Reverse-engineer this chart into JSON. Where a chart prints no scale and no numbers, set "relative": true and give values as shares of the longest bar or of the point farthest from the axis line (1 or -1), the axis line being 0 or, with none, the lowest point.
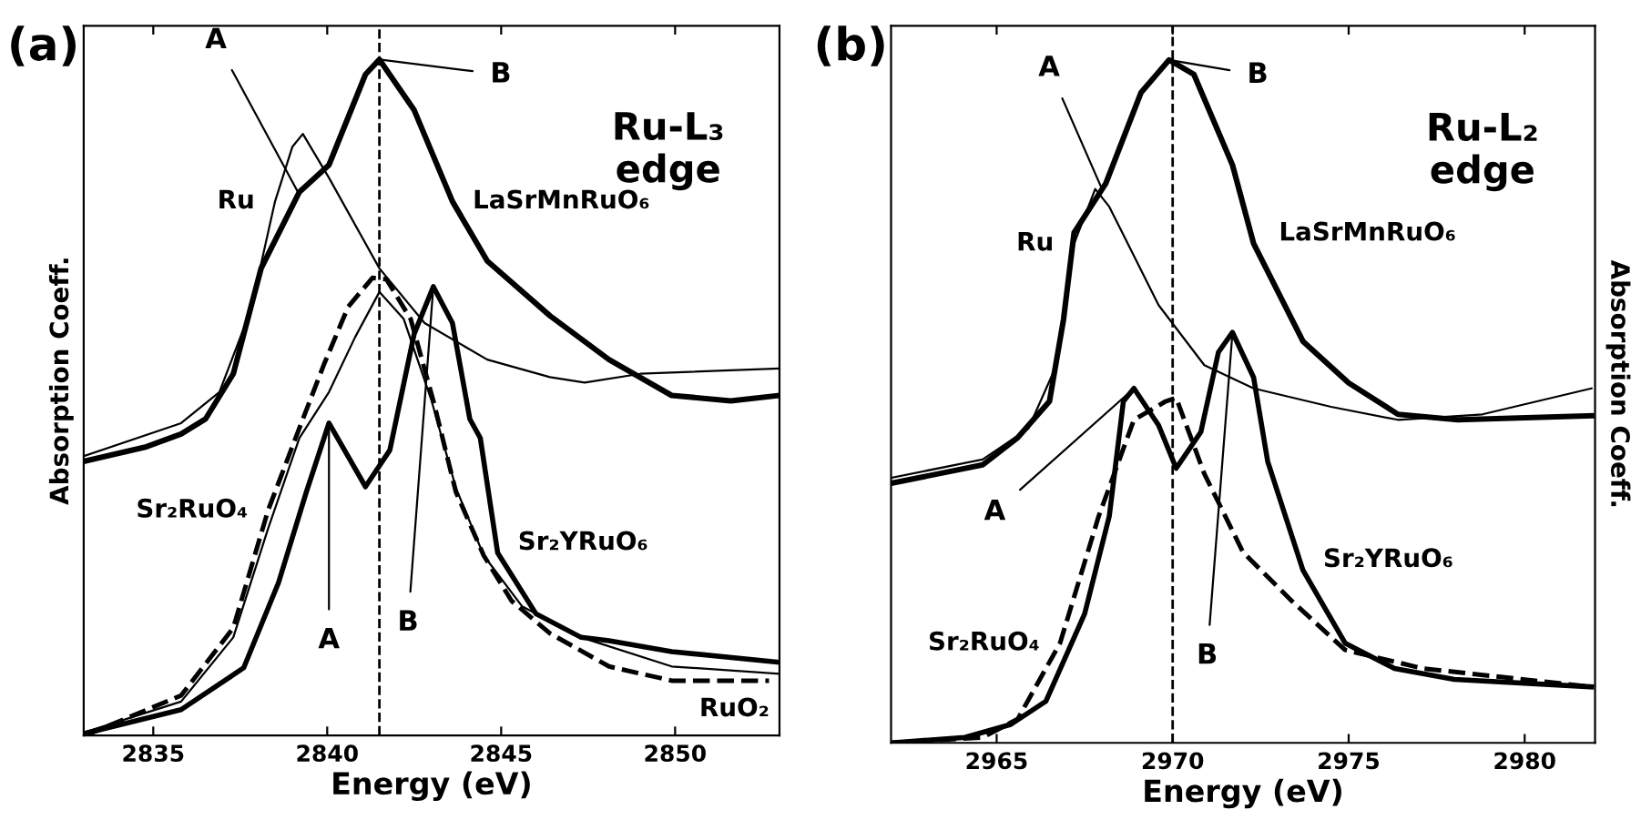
{
  "chart_data": [
    {
      "type": "line",
      "relative": true,
      "xlabel": "Energy (eV)",
      "ylabel": "Absorption Coeff.",
      "xlim": [
        2833,
        2853
      ],
      "xticks": [
        2835,
        2840,
        2845,
        2850
      ],
      "tick_labels": "x",
      "grid": false,
      "legend": false,
      "marker": "none",
      "annotations": [
        "(a)",
        "Ru-L₃\nedge",
        {
          "text": "A",
          "x": 2839.2,
          "y": 0.8
        },
        {
          "text": "B",
          "x": 2841.5,
          "y": 1.0
        },
        {
          "text": "A",
          "x": 2840.05,
          "y": 0.462
        },
        {
          "text": "B",
          "x": 2843.05,
          "y": 0.664
        }
      ],
      "ref_lines": [
        {
          "axis": "x",
          "value": 2841.5,
          "line_style": "dashed",
          "color": "#000000"
        }
      ],
      "series": [
        {
          "name": "Ru",
          "color": "#000000",
          "line_style": "solid",
          "x": [
            2833.05,
            2835.8,
            2836.9,
            2837.8,
            2838.5,
            2839.0,
            2839.3,
            2840.05,
            2841.5,
            2842.8,
            2844.6,
            2846.4,
            2847.4,
            2849,
            2853
          ],
          "values": [
            0.414,
            0.462,
            0.508,
            0.629,
            0.79,
            0.871,
            0.89,
            0.825,
            0.691,
            0.61,
            0.556,
            0.53,
            0.522,
            0.535,
            0.543
          ]
        },
        {
          "name": "LaSrMnRuO₆",
          "color": "#000000",
          "line_style": "solid",
          "x": [
            2833.05,
            2834.8,
            2835.8,
            2836.5,
            2837.3,
            2838.1,
            2839.2,
            2840.05,
            2841.1,
            2841.5,
            2842.5,
            2843.6,
            2844.6,
            2846.4,
            2848.1,
            2849.9,
            2851.6,
            2853
          ],
          "values": [
            0.406,
            0.427,
            0.446,
            0.468,
            0.535,
            0.691,
            0.804,
            0.844,
            0.978,
            1.0,
            0.925,
            0.79,
            0.702,
            0.621,
            0.556,
            0.503,
            0.495,
            0.503
          ]
        },
        {
          "name": "Sr₂YRuO₆",
          "color": "#000000",
          "line_style": "solid",
          "x": [
            2833.05,
            2835.8,
            2837.6,
            2838.6,
            2839.4,
            2840.05,
            2841.1,
            2841.8,
            2842.5,
            2843.05,
            2843.6,
            2844.1,
            2844.4,
            2844.9,
            2846.0,
            2847.3,
            2848.1,
            2849.9,
            2853
          ],
          "values": [
            0.003,
            0.038,
            0.1,
            0.226,
            0.36,
            0.462,
            0.368,
            0.422,
            0.594,
            0.664,
            0.61,
            0.468,
            0.44,
            0.27,
            0.18,
            0.145,
            0.14,
            0.124,
            0.108
          ]
        },
        {
          "name": "RuO₂",
          "color": "#000000",
          "line_style": "solid",
          "x": [
            2833.05,
            2835.8,
            2837.3,
            2838.3,
            2839.2,
            2840.05,
            2840.8,
            2841.5,
            2842.2,
            2843.0,
            2843.7,
            2844.5,
            2845.6,
            2847.3,
            2849.9,
            2853
          ],
          "values": [
            0.005,
            0.05,
            0.145,
            0.306,
            0.44,
            0.508,
            0.589,
            0.656,
            0.616,
            0.495,
            0.366,
            0.266,
            0.191,
            0.145,
            0.102,
            0.091
          ]
        },
        {
          "name": "Sr₂RuO₄",
          "color": "#000000",
          "line_style": "dashed",
          "x": [
            2833.05,
            2835.8,
            2837.3,
            2838.3,
            2839.3,
            2839.9,
            2840.6,
            2841.3,
            2841.7,
            2842.4,
            2843.05,
            2843.7,
            2844.5,
            2845.3,
            2846.4,
            2848.1,
            2849.9,
            2852.7
          ],
          "values": [
            0,
            0.059,
            0.159,
            0.333,
            0.468,
            0.548,
            0.634,
            0.677,
            0.675,
            0.616,
            0.495,
            0.36,
            0.266,
            0.199,
            0.151,
            0.102,
            0.081,
            0.081
          ]
        }
      ]
    },
    {
      "type": "line",
      "relative": true,
      "xlabel": "Energy (eV)",
      "ylabel": "Absorption Coeff.",
      "xlim": [
        2962,
        2982
      ],
      "xticks": [
        2965,
        2970,
        2975,
        2980
      ],
      "tick_labels": "x",
      "grid": false,
      "legend": false,
      "marker": "none",
      "annotations": [
        "(b)",
        "Ru-L₂\nedge",
        {
          "text": "A",
          "x": 2968.0,
          "y": 0.81
        },
        {
          "text": "B",
          "x": 2969.9,
          "y": 1.0
        },
        {
          "text": "A",
          "x": 2968.9,
          "y": 0.519
        },
        {
          "text": "B",
          "x": 2971.7,
          "y": 0.601
        }
      ],
      "ref_lines": [
        {
          "axis": "x",
          "value": 2970,
          "line_style": "dashed",
          "color": "#000000"
        }
      ],
      "series": [
        {
          "name": "Ru",
          "color": "#000000",
          "line_style": "solid",
          "x": [
            2962,
            2964.6,
            2965.9,
            2966.7,
            2967.2,
            2967.8,
            2968.2,
            2969.6,
            2970.9,
            2972.3,
            2974.5,
            2976.4,
            2978.8,
            2981.9
          ],
          "values": [
            0.388,
            0.415,
            0.46,
            0.553,
            0.731,
            0.811,
            0.785,
            0.641,
            0.553,
            0.519,
            0.492,
            0.473,
            0.481,
            0.519
          ]
        },
        {
          "name": "LaSrMnRuO₆",
          "color": "#000000",
          "line_style": "solid",
          "x": [
            2962,
            2964.6,
            2965.6,
            2966.5,
            2966.9,
            2967.2,
            2968.1,
            2969.1,
            2969.9,
            2970.6,
            2971.7,
            2972.3,
            2973.7,
            2975.0,
            2976.4,
            2978.1,
            2981.9
          ],
          "values": [
            0.38,
            0.407,
            0.447,
            0.5,
            0.62,
            0.747,
            0.819,
            0.952,
            1.0,
            0.979,
            0.846,
            0.731,
            0.588,
            0.527,
            0.481,
            0.473,
            0.479
          ]
        },
        {
          "name": "Sr₂YRuO₆",
          "color": "#000000",
          "line_style": "solid",
          "x": [
            2962,
            2964.1,
            2965.4,
            2966.4,
            2967.5,
            2968.2,
            2968.6,
            2968.9,
            2969.6,
            2970.1,
            2970.8,
            2971.3,
            2971.7,
            2972.3,
            2972.7,
            2973.7,
            2974.9,
            2976.3,
            2978.0,
            2981.9
          ],
          "values": [
            0,
            0.008,
            0.027,
            0.061,
            0.189,
            0.332,
            0.5,
            0.519,
            0.465,
            0.402,
            0.455,
            0.572,
            0.601,
            0.535,
            0.412,
            0.253,
            0.146,
            0.109,
            0.093,
            0.082
          ]
        },
        {
          "name": "Sr₂RuO₄",
          "color": "#000000",
          "line_style": "dashed",
          "x": [
            2962,
            2964.6,
            2965.6,
            2966.8,
            2967.9,
            2968.9,
            2969.8,
            2970.1,
            2970.9,
            2972.0,
            2973.4,
            2974.9,
            2977.1,
            2981.9
          ],
          "values": [
            0,
            0.008,
            0.035,
            0.146,
            0.332,
            0.473,
            0.5,
            0.505,
            0.394,
            0.279,
            0.207,
            0.136,
            0.109,
            0.082
          ]
        }
      ]
    }
  ]
}
